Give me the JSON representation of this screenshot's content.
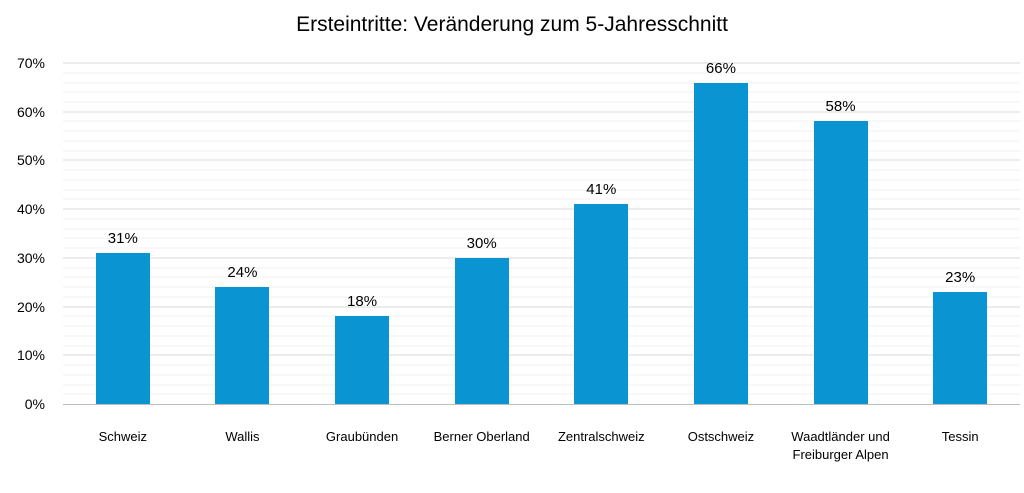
{
  "chart_data": {
    "type": "bar",
    "title": "Ersteintritte: Veränderung zum 5-Jahresschnitt",
    "categories": [
      "Schweiz",
      "Wallis",
      "Graubünden",
      "Berner Oberland",
      "Zentralschweiz",
      "Ostschweiz",
      "Waadtländer und Freiburger Alpen",
      "Tessin"
    ],
    "values": [
      31,
      24,
      18,
      30,
      41,
      66,
      58,
      23
    ],
    "value_labels": [
      "31%",
      "24%",
      "18%",
      "30%",
      "41%",
      "66%",
      "58%",
      "23%"
    ],
    "xlabel": "",
    "ylabel": "",
    "ylim": [
      0,
      70
    ],
    "y_major_step": 10,
    "y_minor_step": 2,
    "y_tick_labels": [
      "0%",
      "10%",
      "20%",
      "30%",
      "40%",
      "50%",
      "60%",
      "70%"
    ],
    "grid": "horizontal, major and minor lines, no vertical axis line",
    "legend": "none",
    "bar_color": "#0b94d2",
    "colors": {
      "major_grid": "#d9d9d9",
      "minor_grid": "#f2f2f2",
      "axis_line": "#bdbdbd",
      "label_text": "#000000"
    }
  }
}
